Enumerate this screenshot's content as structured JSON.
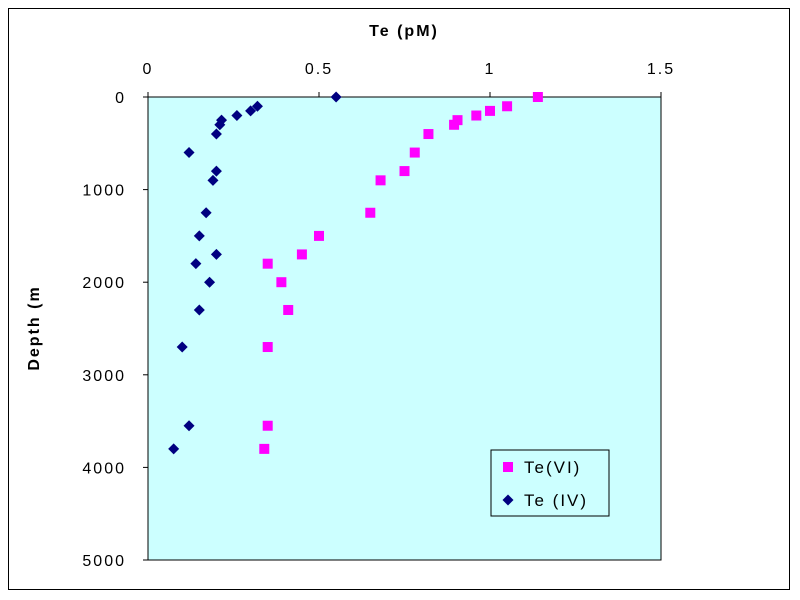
{
  "chart_data": {
    "type": "scatter",
    "title": "",
    "xlabel": "Te (pM)",
    "ylabel": "Depth (m",
    "xlim": [
      0,
      1.5
    ],
    "ylim": [
      5000,
      0
    ],
    "x_axis_position": "top",
    "y_axis_inverted": true,
    "x_ticks": [
      "0",
      "0.5",
      "1",
      "1.5"
    ],
    "y_ticks": [
      "0",
      "1000",
      "2000",
      "3000",
      "4000",
      "5000"
    ],
    "grid": false,
    "plot_background": "#ccffff",
    "legend_position": "bottom-right",
    "series": [
      {
        "name": "Te(VI)",
        "marker": "square",
        "color": "#ff00ff",
        "points": [
          {
            "x": 1.14,
            "y": 0
          },
          {
            "x": 1.05,
            "y": 100
          },
          {
            "x": 1.0,
            "y": 150
          },
          {
            "x": 0.96,
            "y": 200
          },
          {
            "x": 0.905,
            "y": 250
          },
          {
            "x": 0.895,
            "y": 300
          },
          {
            "x": 0.82,
            "y": 400
          },
          {
            "x": 0.78,
            "y": 600
          },
          {
            "x": 0.75,
            "y": 800
          },
          {
            "x": 0.68,
            "y": 900
          },
          {
            "x": 0.65,
            "y": 1250
          },
          {
            "x": 0.5,
            "y": 1500
          },
          {
            "x": 0.45,
            "y": 1700
          },
          {
            "x": 0.35,
            "y": 1800
          },
          {
            "x": 0.39,
            "y": 2000
          },
          {
            "x": 0.41,
            "y": 2300
          },
          {
            "x": 0.35,
            "y": 2700
          },
          {
            "x": 0.35,
            "y": 3550
          },
          {
            "x": 0.34,
            "y": 3800
          }
        ]
      },
      {
        "name": "Te (IV)",
        "marker": "diamond",
        "color": "#000080",
        "points": [
          {
            "x": 0.55,
            "y": 0
          },
          {
            "x": 0.32,
            "y": 100
          },
          {
            "x": 0.3,
            "y": 150
          },
          {
            "x": 0.26,
            "y": 200
          },
          {
            "x": 0.215,
            "y": 250
          },
          {
            "x": 0.21,
            "y": 300
          },
          {
            "x": 0.2,
            "y": 400
          },
          {
            "x": 0.12,
            "y": 600
          },
          {
            "x": 0.2,
            "y": 800
          },
          {
            "x": 0.19,
            "y": 900
          },
          {
            "x": 0.17,
            "y": 1250
          },
          {
            "x": 0.15,
            "y": 1500
          },
          {
            "x": 0.2,
            "y": 1700
          },
          {
            "x": 0.14,
            "y": 1800
          },
          {
            "x": 0.18,
            "y": 2000
          },
          {
            "x": 0.15,
            "y": 2300
          },
          {
            "x": 0.1,
            "y": 2700
          },
          {
            "x": 0.12,
            "y": 3550
          },
          {
            "x": 0.075,
            "y": 3800
          }
        ]
      }
    ]
  }
}
